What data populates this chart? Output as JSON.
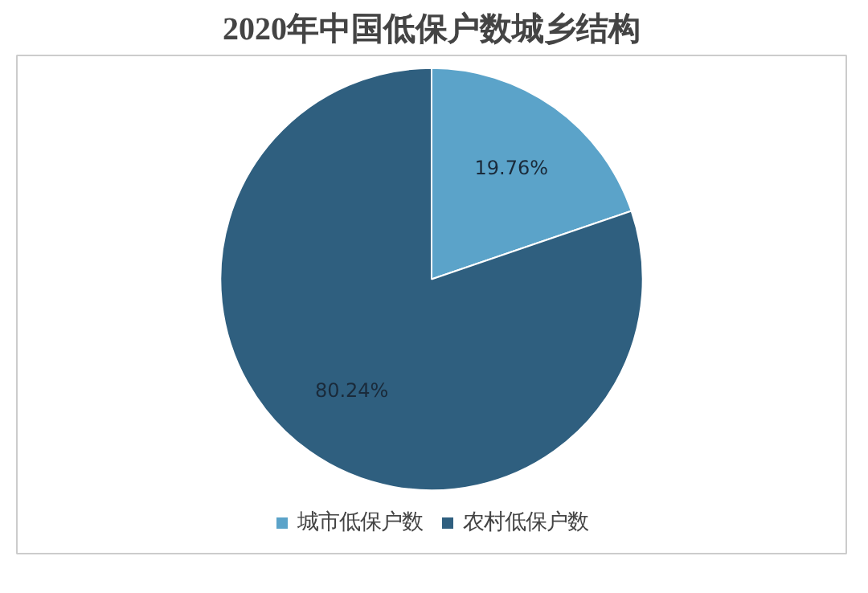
{
  "chart_data": {
    "type": "pie",
    "title": "2020年中国低保户数城乡结构",
    "categories": [
      "城市低保户数",
      "农村低保户数"
    ],
    "values": [
      19.76,
      80.24
    ],
    "colors": [
      "#5ba3c9",
      "#2f5f7f"
    ],
    "value_labels": [
      "19.76%",
      "80.24%"
    ],
    "legend": "bottom"
  }
}
